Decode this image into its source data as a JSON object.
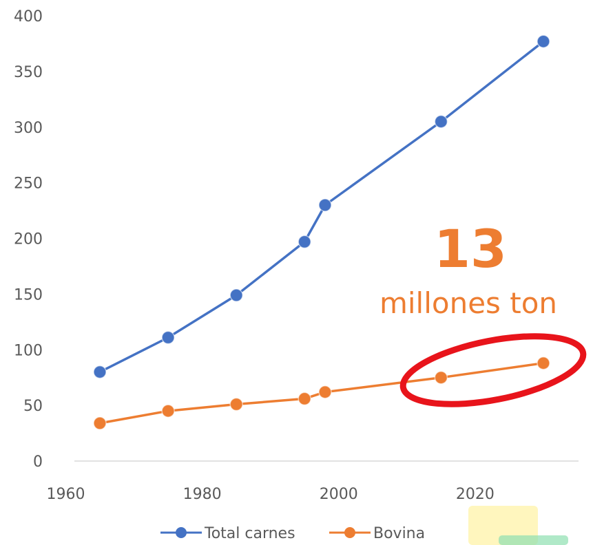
{
  "chart_data": {
    "type": "line",
    "title": "",
    "xlabel": "",
    "ylabel": "",
    "xlim": [
      1960,
      2035
    ],
    "ylim": [
      0,
      400
    ],
    "x_ticks": [
      "1960",
      "1980",
      "2000",
      "2020"
    ],
    "y_ticks": [
      "0",
      "50",
      "100",
      "150",
      "200",
      "250",
      "300",
      "350",
      "400"
    ],
    "grid": false,
    "legend_position": "bottom",
    "series": [
      {
        "name": "Total carnes",
        "color": "#4472C4",
        "x": [
          1965,
          1975,
          1985,
          1995,
          1998,
          2015,
          2030
        ],
        "y": [
          80,
          111,
          149,
          197,
          230,
          305,
          377
        ]
      },
      {
        "name": "Bovina",
        "color": "#ED7D31",
        "x": [
          1965,
          1975,
          1985,
          1995,
          1998,
          2015,
          2030
        ],
        "y": [
          34,
          45,
          51,
          56,
          62,
          75,
          88
        ]
      }
    ],
    "annotation": {
      "number": "13",
      "text": "millones ton",
      "color": "#ED7D31",
      "highlight_color": "#E8141B"
    }
  }
}
